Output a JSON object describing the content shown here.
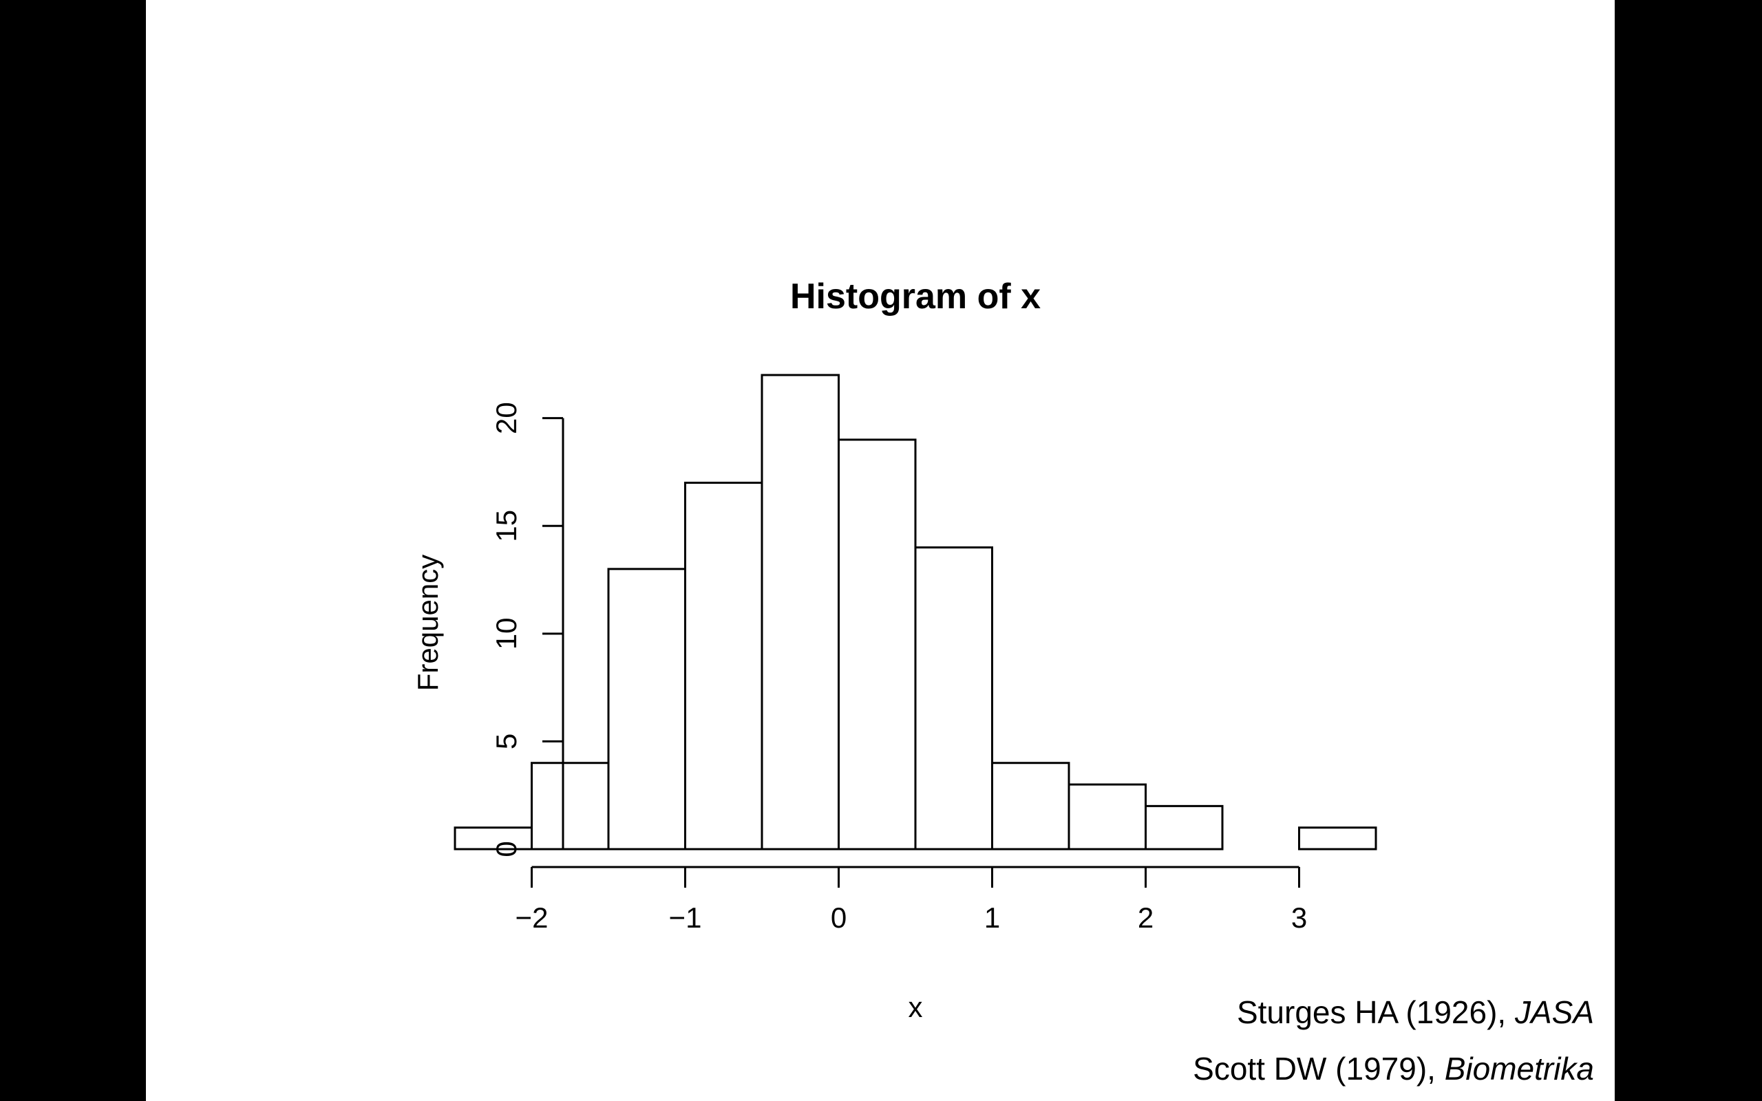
{
  "chart_data": {
    "type": "bar",
    "title": "Histogram of x",
    "xlabel": "x",
    "ylabel": "Frequency",
    "bins": [
      {
        "from": -2.5,
        "to": -2.0,
        "count": 1
      },
      {
        "from": -2.0,
        "to": -1.5,
        "count": 4
      },
      {
        "from": -1.5,
        "to": -1.0,
        "count": 13
      },
      {
        "from": -1.0,
        "to": -0.5,
        "count": 17
      },
      {
        "from": -0.5,
        "to": 0.0,
        "count": 22
      },
      {
        "from": 0.0,
        "to": 0.5,
        "count": 19
      },
      {
        "from": 0.5,
        "to": 1.0,
        "count": 14
      },
      {
        "from": 1.0,
        "to": 1.5,
        "count": 4
      },
      {
        "from": 1.5,
        "to": 2.0,
        "count": 3
      },
      {
        "from": 2.0,
        "to": 2.5,
        "count": 2
      },
      {
        "from": 2.5,
        "to": 3.0,
        "count": 0
      },
      {
        "from": 3.0,
        "to": 3.5,
        "count": 1
      }
    ],
    "xlim": [
      -2.5,
      3.5
    ],
    "ylim": [
      0,
      22
    ],
    "x_ticks": [
      -2,
      -1,
      0,
      1,
      2,
      3
    ],
    "x_tick_labels": [
      "−2",
      "−1",
      "0",
      "1",
      "2",
      "3"
    ],
    "y_ticks": [
      0,
      5,
      10,
      15,
      20
    ],
    "y_tick_labels": [
      "0",
      "5",
      "10",
      "15",
      "20"
    ],
    "grid": false,
    "bar_fill": "#ffffff",
    "bar_stroke": "#000000"
  },
  "citations": [
    {
      "text": "Sturges HA (1926), ",
      "journal": "JASA"
    },
    {
      "text": "Scott DW (1979), ",
      "journal": "Biometrika"
    }
  ]
}
